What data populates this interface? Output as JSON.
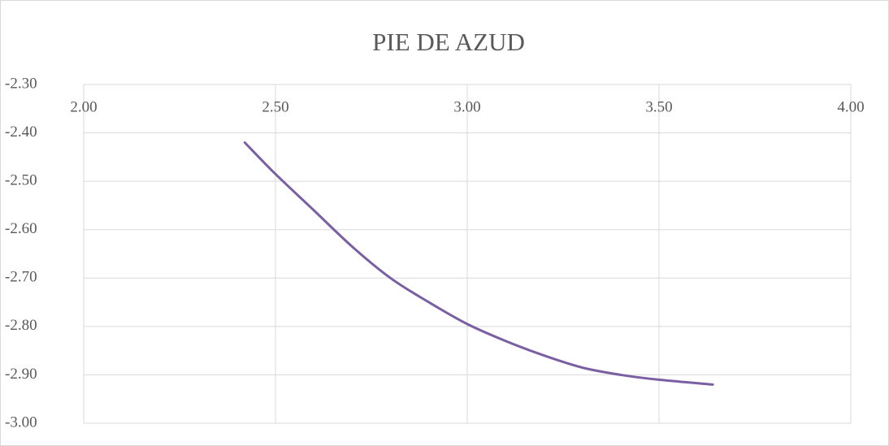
{
  "chart_data": {
    "type": "line",
    "title": "PIE DE AZUD",
    "x": [
      2.42,
      2.5,
      2.6,
      2.7,
      2.8,
      2.9,
      3.0,
      3.1,
      3.2,
      3.3,
      3.4,
      3.5,
      3.64
    ],
    "series": [
      {
        "name": "PIE DE AZUD",
        "color": "#7a5fa3",
        "values": [
          -2.42,
          -2.485,
          -2.56,
          -2.635,
          -2.7,
          -2.75,
          -2.795,
          -2.83,
          -2.86,
          -2.885,
          -2.9,
          -2.91,
          -2.92
        ]
      }
    ],
    "xlim": [
      2,
      4
    ],
    "xticks": [
      {
        "value": 2,
        "label": "2.00"
      },
      {
        "value": 2.5,
        "label": "2.50"
      },
      {
        "value": 3,
        "label": "3.00"
      },
      {
        "value": 3.5,
        "label": "3.50"
      },
      {
        "value": 4,
        "label": "4.00"
      }
    ],
    "ylim": [
      -3,
      -2.3
    ],
    "yticks": [
      {
        "value": -3,
        "label": "-3.00"
      },
      {
        "value": -2.9,
        "label": "-2.90"
      },
      {
        "value": -2.8,
        "label": "-2.80"
      },
      {
        "value": -2.7,
        "label": "-2.70"
      },
      {
        "value": -2.6,
        "label": "-2.60"
      },
      {
        "value": -2.5,
        "label": "-2.50"
      },
      {
        "value": -2.4,
        "label": "-2.40"
      },
      {
        "value": -2.3,
        "label": "-2.30"
      }
    ],
    "grid": true
  }
}
